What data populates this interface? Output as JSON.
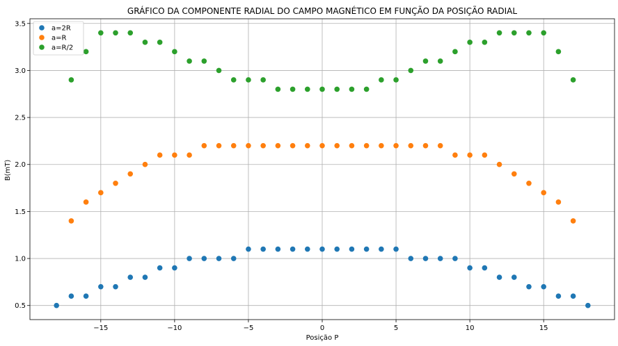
{
  "chart_data": {
    "type": "scatter",
    "title": "GRÁFICO DA COMPONENTE RADIAL DO CAMPO MAGNÉTICO EM FUNÇÃO DA POSIÇÃO RADIAL",
    "xlabel": "Posição P",
    "ylabel": "B(mT)",
    "xlim": [
      -19.8,
      19.8
    ],
    "ylim": [
      0.35,
      3.55
    ],
    "xticks": [
      -15,
      -10,
      -5,
      0,
      5,
      10,
      15
    ],
    "xtick_labels": [
      "−15",
      "−10",
      "−5",
      "0",
      "5",
      "10",
      "15"
    ],
    "yticks": [
      0.5,
      1.0,
      1.5,
      2.0,
      2.5,
      3.0,
      3.5
    ],
    "ytick_labels": [
      "0.5",
      "1.0",
      "1.5",
      "2.0",
      "2.5",
      "3.0",
      "3.5"
    ],
    "grid": true,
    "legend_position": "top-left",
    "series": [
      {
        "name": "a=2R",
        "color": "#1f77b4",
        "x": [
          -18,
          -17,
          -16,
          -15,
          -14,
          -13,
          -12,
          -11,
          -10,
          -9,
          -8,
          -7,
          -6,
          -5,
          -4,
          -3,
          -2,
          -1,
          0,
          1,
          2,
          3,
          4,
          5,
          6,
          7,
          8,
          9,
          10,
          11,
          12,
          13,
          14,
          15,
          16,
          17,
          18
        ],
        "y": [
          0.5,
          0.6,
          0.6,
          0.7,
          0.7,
          0.8,
          0.8,
          0.9,
          0.9,
          1.0,
          1.0,
          1.0,
          1.0,
          1.1,
          1.1,
          1.1,
          1.1,
          1.1,
          1.1,
          1.1,
          1.1,
          1.1,
          1.1,
          1.1,
          1.0,
          1.0,
          1.0,
          1.0,
          0.9,
          0.9,
          0.8,
          0.8,
          0.7,
          0.7,
          0.6,
          0.6,
          0.5
        ]
      },
      {
        "name": "a=R",
        "color": "#ff7f0e",
        "x": [
          -17,
          -16,
          -15,
          -14,
          -13,
          -12,
          -11,
          -10,
          -9,
          -8,
          -7,
          -6,
          -5,
          -4,
          -3,
          -2,
          -1,
          0,
          1,
          2,
          3,
          4,
          5,
          6,
          7,
          8,
          9,
          10,
          11,
          12,
          13,
          14,
          15,
          16,
          17
        ],
        "y": [
          1.4,
          1.6,
          1.7,
          1.8,
          1.9,
          2.0,
          2.1,
          2.1,
          2.1,
          2.2,
          2.2,
          2.2,
          2.2,
          2.2,
          2.2,
          2.2,
          2.2,
          2.2,
          2.2,
          2.2,
          2.2,
          2.2,
          2.2,
          2.2,
          2.2,
          2.2,
          2.1,
          2.1,
          2.1,
          2.0,
          1.9,
          1.8,
          1.7,
          1.6,
          1.4
        ]
      },
      {
        "name": "a=R/2",
        "color": "#2ca02c",
        "x": [
          -17,
          -16,
          -15,
          -14,
          -13,
          -12,
          -11,
          -10,
          -9,
          -8,
          -7,
          -6,
          -5,
          -4,
          -3,
          -2,
          -1,
          0,
          1,
          2,
          3,
          4,
          5,
          6,
          7,
          8,
          9,
          10,
          11,
          12,
          13,
          14,
          15,
          16,
          17
        ],
        "y": [
          2.9,
          3.2,
          3.4,
          3.4,
          3.4,
          3.3,
          3.3,
          3.2,
          3.1,
          3.1,
          3.0,
          2.9,
          2.9,
          2.9,
          2.8,
          2.8,
          2.8,
          2.8,
          2.8,
          2.8,
          2.8,
          2.9,
          2.9,
          3.0,
          3.1,
          3.1,
          3.2,
          3.3,
          3.3,
          3.4,
          3.4,
          3.4,
          3.4,
          3.2,
          2.9
        ]
      }
    ]
  }
}
